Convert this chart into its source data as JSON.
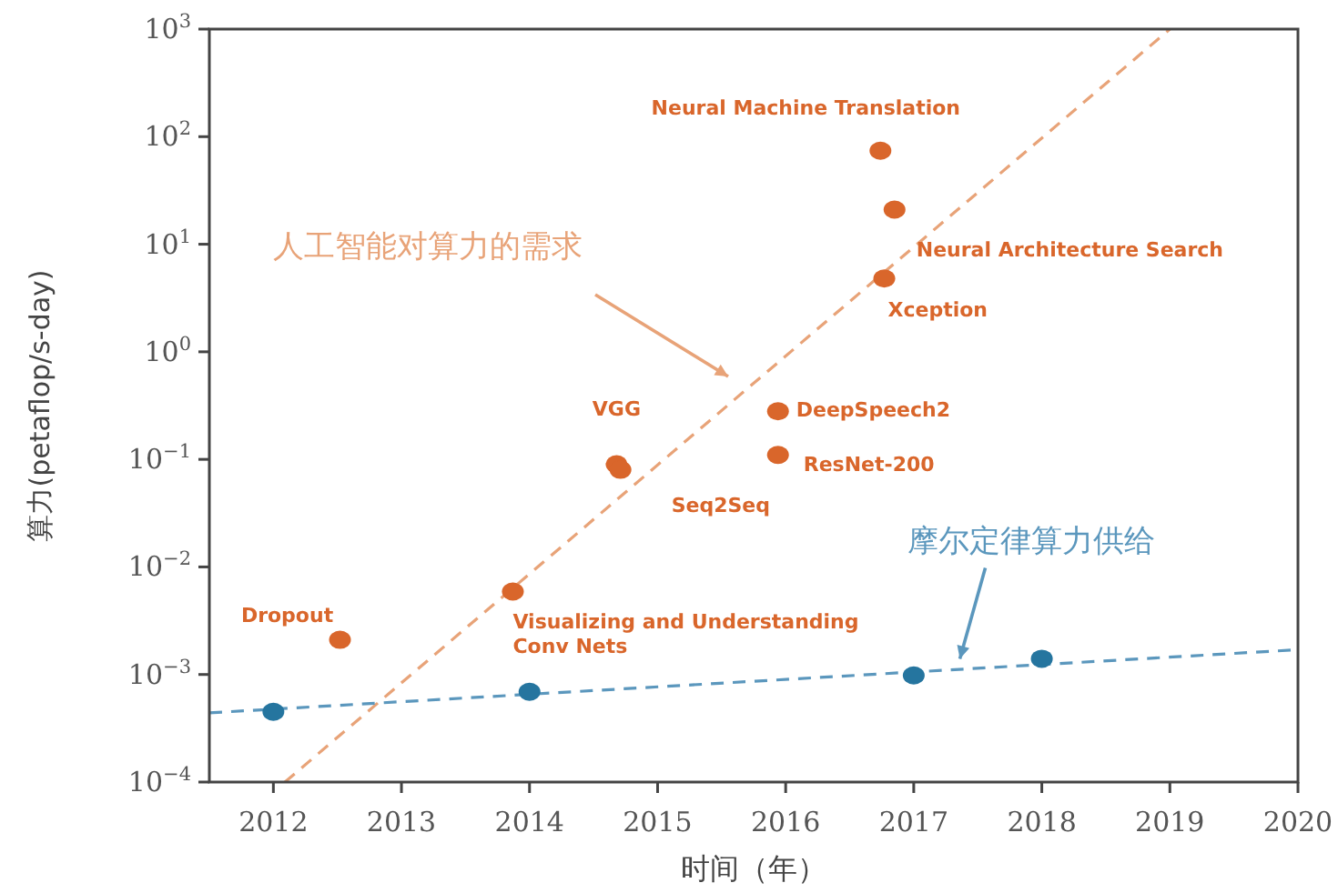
{
  "chart_data": {
    "type": "scatter",
    "xlabel": "时间（年）",
    "ylabel": "算力(petaflop/s-day)",
    "log": "y",
    "xlim": [
      2011.5,
      2020
    ],
    "ylim": [
      0.0001,
      1000
    ],
    "xticks": [
      2012,
      2013,
      2014,
      2015,
      2016,
      2017,
      2018,
      2019,
      2020
    ],
    "yticks": [
      {
        "value": 0.0001,
        "label": "10$^{−4}$"
      },
      {
        "value": 0.001,
        "label": "10$^{−3}$"
      },
      {
        "value": 0.01,
        "label": "10$^{−2}$"
      },
      {
        "value": 0.1,
        "label": "10$^{−1}$"
      },
      {
        "value": 1,
        "label": "10$^{0}$"
      },
      {
        "value": 10,
        "label": "10$^{1}$"
      },
      {
        "value": 100,
        "label": "10$^{2}$"
      },
      {
        "value": 1000,
        "label": "10$^{3}$"
      }
    ],
    "grid": false,
    "marker": "circle",
    "series": [
      {
        "type": "line",
        "color": "#e8a378",
        "line_style": "dashed",
        "marker": "none",
        "x": [
          2012.09,
          2019.0
        ],
        "values": [
          0.0001,
          1000
        ]
      },
      {
        "type": "line",
        "color": "#5b97bd",
        "line_style": "dashed",
        "marker": "none",
        "x": [
          2011.5,
          2020
        ],
        "values": [
          0.00044,
          0.0017
        ]
      },
      {
        "color": "#d9662b",
        "x": [
          2012.52,
          2013.87,
          2014.68,
          2014.71,
          2015.94,
          2015.94,
          2016.77,
          2016.85,
          2016.74
        ],
        "values": [
          0.0021,
          0.0059,
          0.09,
          0.08,
          0.28,
          0.11,
          4.8,
          21,
          74
        ]
      },
      {
        "color": "#25759f",
        "x": [
          2012,
          2014,
          2017,
          2018
        ],
        "values": [
          0.00045,
          0.00069,
          0.00098,
          0.0014
        ]
      }
    ],
    "annotations": [
      {
        "text": "Dropout",
        "x": 2012.52,
        "y": 0.0021
      },
      {
        "text": "Visualizing and Understanding\nConv Nets",
        "x": 2013.87,
        "y": 0.0059
      },
      {
        "text": "VGG",
        "x": 2014.68,
        "y": 0.09
      },
      {
        "text": "Seq2Seq",
        "x": 2014.71,
        "y": 0.08
      },
      {
        "text": "DeepSpeech2",
        "x": 2015.94,
        "y": 0.28
      },
      {
        "text": "ResNet-200",
        "x": 2015.94,
        "y": 0.11
      },
      {
        "text": "Xception",
        "x": 2016.77,
        "y": 4.8
      },
      {
        "text": "Neural Architecture Search",
        "x": 2016.85,
        "y": 21
      },
      {
        "text": "Neural Machine Translation",
        "x": 2016.74,
        "y": 74
      },
      "人工智能对算力的需求",
      {
        "text": "摩尔定律算力供给",
        "x": 2017.36,
        "y": 0.0014
      }
    ]
  }
}
